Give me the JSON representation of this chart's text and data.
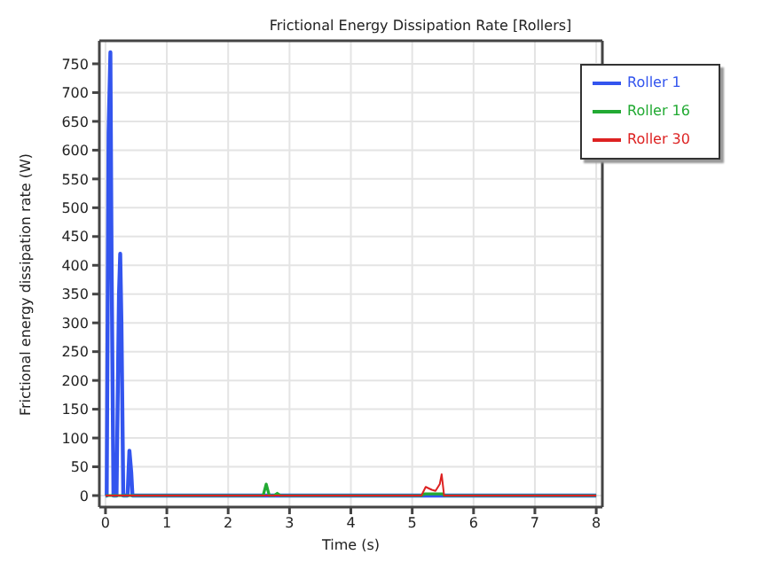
{
  "chart_data": {
    "type": "line",
    "title": "Frictional Energy Dissipation Rate [Rollers]",
    "xlabel": "Time (s)",
    "ylabel": "Frictional energy dissipation rate (W)",
    "xlim": [
      -0.1,
      8.1
    ],
    "ylim": [
      -20,
      790
    ],
    "xticks": [
      0,
      1,
      2,
      3,
      4,
      5,
      6,
      7,
      8
    ],
    "yticks": [
      0,
      50,
      100,
      150,
      200,
      250,
      300,
      350,
      400,
      450,
      500,
      550,
      600,
      650,
      700,
      750
    ],
    "grid": true,
    "legend": "top right",
    "marker": "none",
    "line_style": "solid",
    "series": [
      {
        "name": "Roller 1",
        "color": "#3355ee",
        "x": [
          0,
          0.02,
          0.05,
          0.08,
          0.1,
          0.13,
          0.18,
          0.22,
          0.24,
          0.26,
          0.29,
          0.36,
          0.39,
          0.42,
          0.44,
          8
        ],
        "values": [
          0,
          0,
          630,
          770,
          400,
          0,
          0,
          350,
          420,
          300,
          0,
          0,
          78,
          40,
          0,
          0
        ]
      },
      {
        "name": "Roller 16",
        "color": "#22aa33",
        "x": [
          0,
          2.57,
          2.62,
          2.67,
          2.75,
          2.8,
          2.85,
          5.15,
          5.2,
          5.5,
          5.52,
          8
        ],
        "values": [
          0,
          0,
          20,
          0,
          0,
          4,
          0,
          0,
          3,
          3,
          0,
          0
        ]
      },
      {
        "name": "Roller 30",
        "color": "#dd2222",
        "x": [
          0,
          5.15,
          5.22,
          5.28,
          5.32,
          5.38,
          5.45,
          5.48,
          5.52,
          8
        ],
        "values": [
          0,
          0,
          15,
          12,
          10,
          8,
          20,
          37,
          0,
          0
        ]
      }
    ]
  }
}
